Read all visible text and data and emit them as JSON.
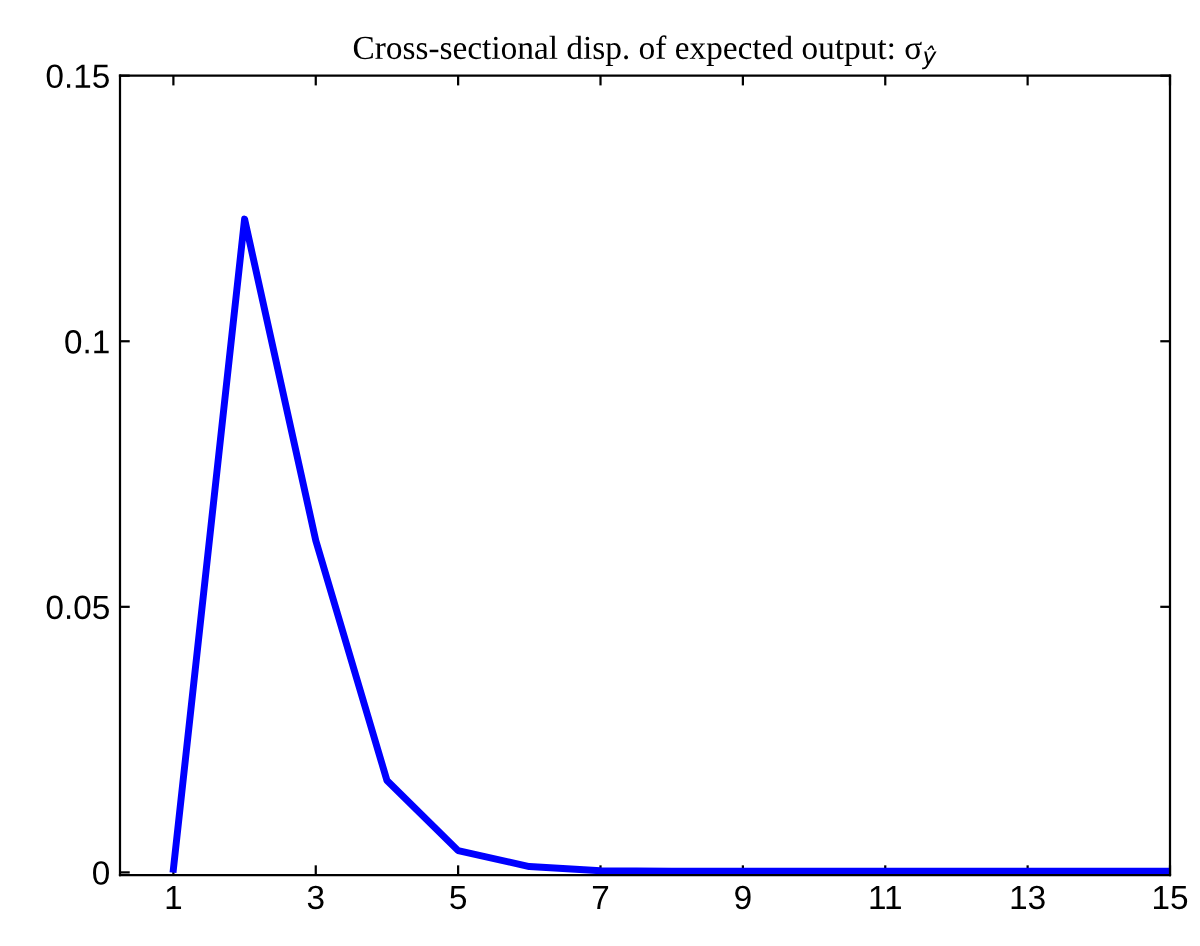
{
  "chart_data": {
    "type": "line",
    "title": "Cross-sectional disp. of expected output: σ$_{ŷ}$",
    "x": [
      1,
      2,
      3,
      4,
      5,
      6,
      7,
      8,
      9,
      10,
      11,
      12,
      13,
      14,
      15
    ],
    "series": [
      {
        "color": "#0000ff",
        "values": [
          0.0006,
          0.123,
          0.0625,
          0.0173,
          0.0041,
          0.0011,
          0.0003,
          0.0002,
          0.0002,
          0.0002,
          0.0002,
          0.0002,
          0.0002,
          0.0002,
          0.0002
        ]
      }
    ],
    "xlim": [
      0.25,
      15
    ],
    "ylim": [
      -0.0005,
      0.15
    ],
    "xticks": [
      1,
      3,
      5,
      7,
      9,
      11,
      13,
      15
    ],
    "yticks": [
      0,
      0.05,
      0.1,
      0.15
    ],
    "grid": false,
    "legend": false,
    "marker": "none",
    "line_style": "solid"
  }
}
